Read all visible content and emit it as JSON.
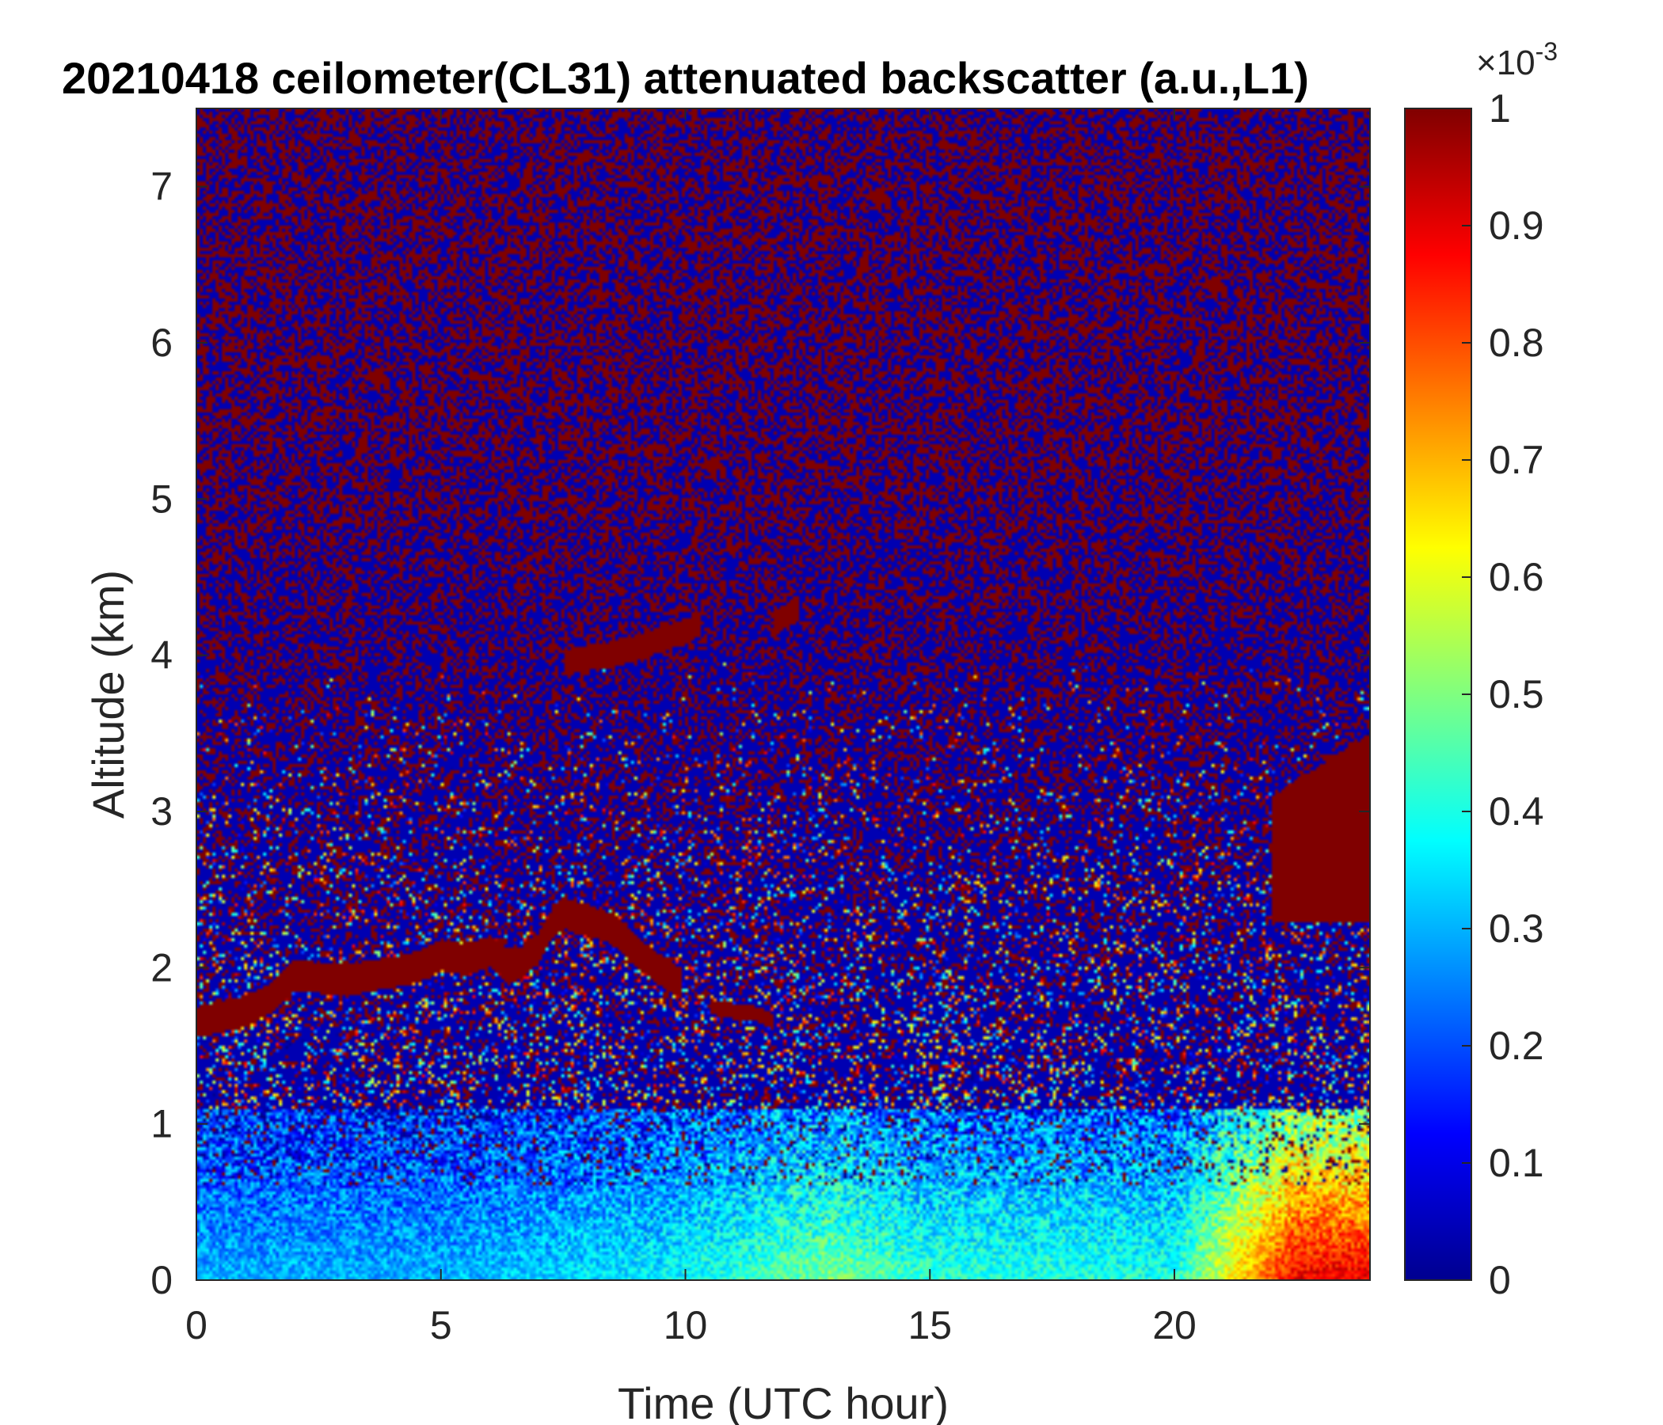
{
  "chart_data": {
    "type": "heatmap",
    "title": "20210418 ceilometer(CL31) attenuated backscatter (a.u.,L1)",
    "xlabel": "Time (UTC hour)",
    "ylabel": "Altitude (km)",
    "xlim": [
      0,
      24
    ],
    "ylim": [
      0,
      7.5
    ],
    "x_ticks": [
      "0",
      "5",
      "10",
      "15",
      "20"
    ],
    "x_tick_values": [
      0,
      5,
      10,
      15,
      20
    ],
    "y_ticks": [
      "0",
      "1",
      "2",
      "3",
      "4",
      "5",
      "6",
      "7"
    ],
    "y_tick_values": [
      0,
      1,
      2,
      3,
      4,
      5,
      6,
      7
    ],
    "colormap": "jet",
    "colorbar": {
      "ticks": [
        "0",
        "0.1",
        "0.2",
        "0.3",
        "0.4",
        "0.5",
        "0.6",
        "0.7",
        "0.8",
        "0.9",
        "1"
      ],
      "tick_values": [
        0,
        0.1,
        0.2,
        0.3,
        0.4,
        0.5,
        0.6,
        0.7,
        0.8,
        0.9,
        1
      ],
      "range": [
        0,
        1
      ],
      "exponent_base": "×10",
      "exponent_power": "-3"
    },
    "features": {
      "cloud_layer_1": {
        "time_hours": [
          0,
          1,
          1.5,
          2,
          3,
          4,
          4.5,
          5,
          5.5,
          6,
          6.5,
          7,
          7.3,
          7.5,
          8,
          8.5,
          9,
          9.5,
          9.9
        ],
        "altitude_km": [
          1.65,
          1.72,
          1.8,
          1.95,
          1.92,
          1.97,
          2.0,
          2.08,
          2.05,
          2.1,
          2.0,
          2.12,
          2.3,
          2.35,
          2.3,
          2.25,
          2.1,
          1.98,
          1.9
        ]
      },
      "cloud_layer_2": {
        "time_hours": [
          10.5,
          11,
          11.5,
          11.8
        ],
        "altitude_km": [
          1.75,
          1.72,
          1.7,
          1.65
        ]
      },
      "elevated_layer": {
        "time_hours": [
          7.5,
          8,
          8.5,
          9,
          9.5,
          10,
          10.3
        ],
        "altitude_km": [
          3.95,
          3.98,
          4.0,
          4.05,
          4.1,
          4.15,
          4.2
        ]
      },
      "high_patch": {
        "time_hours": [
          11.8,
          12.3
        ],
        "altitude_km": [
          4.2,
          4.3
        ]
      },
      "late_cloud_top": {
        "time_hours": [
          22,
          23,
          24
        ],
        "altitude_km": [
          3.1,
          3.3,
          3.5
        ]
      },
      "surface_aerosol_intensity": {
        "time_hours": [
          0,
          5,
          10,
          13,
          15,
          20,
          22.5,
          24
        ],
        "value_1e-3": [
          0.3,
          0.3,
          0.38,
          0.5,
          0.42,
          0.4,
          0.9,
          0.9
        ]
      }
    }
  }
}
